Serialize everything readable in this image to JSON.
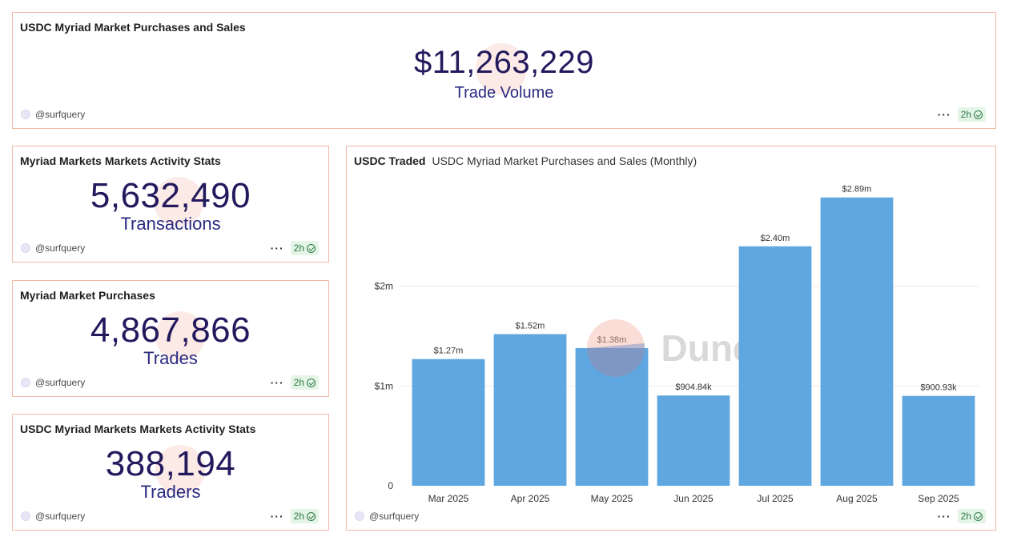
{
  "trade_volume_card": {
    "title": "USDC Myriad Market Purchases and Sales",
    "value": "$11,263,229",
    "label": "Trade Volume",
    "author": "@surfquery",
    "freshness": "2h"
  },
  "transactions_card": {
    "title": "Myriad Markets Markets Activity Stats",
    "value": "5,632,490",
    "label": "Transactions",
    "author": "@surfquery",
    "freshness": "2h"
  },
  "trades_card": {
    "title": "Myriad Market Purchases",
    "value": "4,867,866",
    "label": "Trades",
    "author": "@surfquery",
    "freshness": "2h"
  },
  "traders_card": {
    "title": "USDC Myriad Markets Markets Activity Stats",
    "value": "388,194",
    "label": "Traders",
    "author": "@surfquery",
    "freshness": "2h"
  },
  "chart_card": {
    "title": "USDC Traded",
    "subtitle": "USDC Myriad Market Purchases and Sales (Monthly)",
    "author": "@surfquery",
    "freshness": "2h",
    "watermark": "Dune"
  },
  "chart_data": {
    "type": "bar",
    "title": "USDC Traded",
    "subtitle": "USDC Myriad Market Purchases and Sales (Monthly)",
    "categories": [
      "Mar 2025",
      "Apr 2025",
      "May 2025",
      "Jun 2025",
      "Jul 2025",
      "Aug 2025",
      "Sep 2025"
    ],
    "values": [
      1270000,
      1520000,
      1380000,
      904840,
      2400000,
      2890000,
      900930
    ],
    "data_labels": [
      "$1.27m",
      "$1.52m",
      "$1.38m",
      "$904.84k",
      "$2.40m",
      "$2.89m",
      "$900.93k"
    ],
    "yticks": [
      0,
      1000000,
      2000000
    ],
    "ytick_labels": [
      "0",
      "$1m",
      "$2m"
    ],
    "ylim": [
      0,
      3000000
    ],
    "grid": true,
    "bar_color": "#5ea7e0",
    "legend": "none"
  },
  "colors": {
    "card_border": "#f0b9a6",
    "big_number": "#231a5e",
    "badge_bg": "#e4f5e8",
    "badge_text": "#2f7a43"
  },
  "icons": [
    "avatar",
    "more-icon",
    "check-icon"
  ]
}
